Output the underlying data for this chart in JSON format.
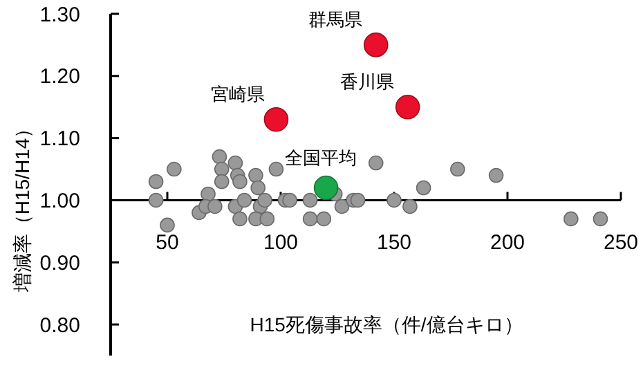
{
  "chart_data": {
    "type": "scatter",
    "xlabel": "H15死傷事故率（件/億台キロ）",
    "ylabel": "増減率（H15/H14）",
    "xlim": [
      25,
      250
    ],
    "ylim": [
      0.75,
      1.3
    ],
    "xticks": [
      50,
      100,
      150,
      200,
      250
    ],
    "yticks": [
      {
        "value": 0.8,
        "label": "0.80"
      },
      {
        "value": 0.9,
        "label": "0.90"
      },
      {
        "value": 1.0,
        "label": "1.00"
      },
      {
        "value": 1.1,
        "label": "1.10"
      },
      {
        "value": 1.2,
        "label": "1.20"
      },
      {
        "value": 1.3,
        "label": "1.30"
      }
    ],
    "marker": "circle",
    "grid": false,
    "series": [
      {
        "color": "#999999",
        "x": [
          45,
          45,
          53,
          50,
          64,
          68,
          67,
          71,
          73,
          74,
          74,
          80,
          81,
          82,
          80,
          82,
          84,
          89,
          90,
          91,
          93,
          89,
          94,
          98,
          102,
          104,
          113,
          113,
          119,
          124,
          127,
          132,
          134,
          142,
          150,
          157,
          163,
          178,
          195,
          228,
          241
        ],
        "values": [
          1.03,
          1.0,
          1.05,
          0.96,
          0.98,
          1.01,
          0.99,
          0.99,
          1.07,
          1.05,
          1.03,
          1.06,
          1.04,
          1.03,
          0.99,
          0.97,
          1.0,
          1.04,
          1.02,
          0.99,
          1.0,
          0.97,
          0.97,
          1.05,
          1.0,
          1.0,
          1.0,
          0.97,
          0.97,
          1.01,
          0.99,
          1.0,
          1.0,
          1.06,
          1.0,
          0.99,
          1.02,
          1.05,
          1.04,
          0.97,
          0.97
        ]
      },
      {
        "color": "#e8102a",
        "x": [
          142,
          156,
          98
        ],
        "values": [
          1.25,
          1.15,
          1.13
        ]
      },
      {
        "color": "#1aa64a",
        "x": [
          120
        ],
        "values": [
          1.02
        ]
      }
    ],
    "annotations": [
      {
        "text": "群馬県",
        "x": 142,
        "y": 1.25
      },
      {
        "text": "香川県",
        "x": 156,
        "y": 1.15
      },
      {
        "text": "宮崎県",
        "x": 98,
        "y": 1.13
      },
      {
        "text": "全国平均",
        "x": 120,
        "y": 1.02
      }
    ]
  }
}
